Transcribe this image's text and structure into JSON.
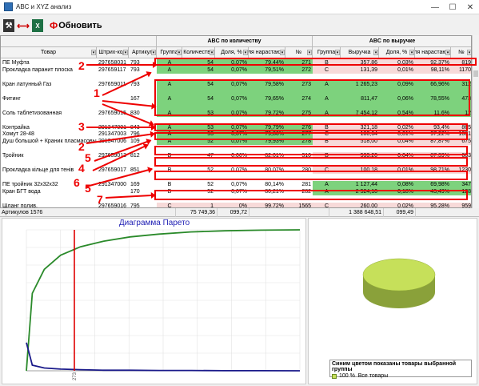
{
  "window": {
    "title": "ABC и XYZ анализ",
    "minimize": "—",
    "maximize": "☐",
    "close": "✕"
  },
  "toolbar": {
    "tool_glyph": "⚒",
    "arrow_glyph": "⟷",
    "excel_glyph": "X",
    "refresh_glyph": "Ф",
    "refresh_label": "Обновить"
  },
  "grid": {
    "group_headers": {
      "qty": "ABC по количеству",
      "rev": "ABC по выручке"
    },
    "columns": [
      "Товар",
      "Штрих-код",
      "Артикул",
      "Группа",
      "Количество",
      "Доля, %",
      "Доля нарастающим",
      "№",
      "Группа",
      "Выручка",
      "Доля, %",
      "Доля нарастающим",
      "№"
    ],
    "rows": [
      {
        "name": "ПЕ Муфта",
        "bar": "297658031",
        "art": "793",
        "qg": "A",
        "qty": "54",
        "qsh": "0,07%",
        "qcum": "79,44%",
        "qn": "271",
        "rg": "B",
        "rev": "357,86",
        "rsh": "0,03%",
        "rcum": "92,37%",
        "rn": "819",
        "qc": "g",
        "rc": "p"
      },
      {
        "name": "Прокладка паранит плоска",
        "bar": "297659117",
        "art": "793",
        "qg": "A",
        "qty": "54",
        "qsh": "0,07%",
        "qcum": "79,51%",
        "qn": "272",
        "rg": "C",
        "rev": "131,39",
        "rsh": "0,01%",
        "rcum": "98,11%",
        "rn": "1170",
        "qc": "g",
        "rc": "p"
      },
      {
        "name": "",
        "bar": "",
        "art": "",
        "qg": "",
        "qty": "",
        "qsh": "",
        "qcum": "",
        "qn": "",
        "rg": "",
        "rev": "",
        "rsh": "",
        "rcum": "",
        "rn": "",
        "qc": "",
        "rc": ""
      },
      {
        "name": "Кран латунный Газ",
        "bar": "297659011",
        "art": "793",
        "qg": "A",
        "qty": "54",
        "qsh": "0,07%",
        "qcum": "79,58%",
        "qn": "273",
        "rg": "A",
        "rev": "1 265,23",
        "rsh": "0,09%",
        "rcum": "66,96%",
        "rn": "312",
        "qc": "g",
        "rc": "g"
      },
      {
        "name": "",
        "bar": "",
        "art": "",
        "qg": "",
        "qty": "",
        "qsh": "",
        "qcum": "",
        "qn": "",
        "rg": "",
        "rev": "",
        "rsh": "",
        "rcum": "",
        "rn": "",
        "qc": "g",
        "rc": "g"
      },
      {
        "name": "Фитинг",
        "bar": "",
        "art": "167",
        "qg": "A",
        "qty": "54",
        "qsh": "0,07%",
        "qcum": "79,65%",
        "qn": "274",
        "rg": "A",
        "rev": "811,47",
        "rsh": "0,06%",
        "rcum": "78,55%",
        "rn": "473",
        "qc": "g",
        "rc": "g"
      },
      {
        "name": "",
        "bar": "",
        "art": "",
        "qg": "",
        "qty": "",
        "qsh": "",
        "qcum": "",
        "qn": "",
        "rg": "",
        "rev": "",
        "rsh": "",
        "rcum": "",
        "rn": "",
        "qc": "g",
        "rc": "g"
      },
      {
        "name": "Соль таблетизованная",
        "bar": "297659015",
        "art": "830",
        "qg": "A",
        "qty": "53",
        "qsh": "0,07%",
        "qcum": "79,72%",
        "qn": "275",
        "rg": "A",
        "rev": "7 454,12",
        "rsh": "0,54%",
        "rcum": "11,6%",
        "rn": "12",
        "qc": "g",
        "rc": "g"
      },
      {
        "name": "",
        "bar": "",
        "art": "",
        "qg": "",
        "qty": "",
        "qsh": "",
        "qcum": "",
        "qn": "",
        "rg": "",
        "rev": "",
        "rsh": "",
        "rcum": "",
        "rn": "",
        "qc": "",
        "rc": ""
      },
      {
        "name": "Контрайка",
        "bar": "291347001",
        "art": "843",
        "qg": "A",
        "qty": "53",
        "qsh": "0,07%",
        "qcum": "79,79%",
        "qn": "276",
        "rg": "B",
        "rev": "321,18",
        "rsh": "0,02%",
        "rcum": "93,4%",
        "rn": "865",
        "qc": "g",
        "rc": "p"
      },
      {
        "name": "Хомут 28-48",
        "bar": "291347003",
        "art": "796",
        "qg": "A",
        "qty": "53",
        "qsh": "0,07%",
        "qcum": "79,86%",
        "qn": "277",
        "rg": "C",
        "rev": "180,64",
        "rsh": "0,01%",
        "rcum": "97,22%",
        "rn": "1081",
        "qc": "g",
        "rc": "p"
      },
      {
        "name": "Душ большой + Краник пласмасовый",
        "bar": "291347006",
        "art": "109",
        "qg": "A",
        "qty": "52",
        "qsh": "0,07%",
        "qcum": "79,93%",
        "qn": "278",
        "rg": "B",
        "rev": "518,00",
        "rsh": "0,04%",
        "rcum": "87,87%",
        "rn": "675",
        "qc": "g",
        "rc": "p"
      },
      {
        "name": "",
        "bar": "",
        "art": "",
        "qg": "",
        "qty": "",
        "qsh": "",
        "qcum": "",
        "qn": "",
        "rg": "",
        "rev": "",
        "rsh": "",
        "rcum": "",
        "rn": "",
        "qc": "",
        "rc": ""
      },
      {
        "name": "Тройник",
        "bar": "297659013",
        "art": "812",
        "qg": "B",
        "qty": "47",
        "qsh": "0,06%",
        "qcum": "82,01%",
        "qn": "310",
        "rg": "B",
        "rev": "533,20",
        "rsh": "0,04%",
        "rcum": "87,39%",
        "rn": "663",
        "qc": "",
        "rc": "p"
      },
      {
        "name": "",
        "bar": "",
        "art": "",
        "qg": "",
        "qty": "",
        "qsh": "",
        "qcum": "",
        "qn": "",
        "rg": "",
        "rev": "",
        "rsh": "",
        "rcum": "",
        "rn": "",
        "qc": "",
        "rc": ""
      },
      {
        "name": "Прокладка кільце для тенів",
        "bar": "297659017",
        "art": "851",
        "qg": "B",
        "qty": "52",
        "qsh": "0,07%",
        "qcum": "80,07%",
        "qn": "280",
        "rg": "C",
        "rev": "100,18",
        "rsh": "0,01%",
        "rcum": "98,71%",
        "rn": "1230",
        "qc": "",
        "rc": "p"
      },
      {
        "name": "",
        "bar": "",
        "art": "",
        "qg": "",
        "qty": "",
        "qsh": "",
        "qcum": "",
        "qn": "",
        "rg": "",
        "rev": "",
        "rsh": "",
        "rcum": "",
        "rn": "",
        "qc": "",
        "rc": ""
      },
      {
        "name": "ПЕ тройник 32х32х32",
        "bar": "291347000",
        "art": "169",
        "qg": "B",
        "qty": "52",
        "qsh": "0,07%",
        "qcum": "80,14%",
        "qn": "281",
        "rg": "A",
        "rev": "1 127,44",
        "rsh": "0,08%",
        "rcum": "69,98%",
        "rn": "347",
        "qc": "",
        "rc": "g"
      },
      {
        "name": "Кран БГТ вода",
        "bar": "",
        "art": "170",
        "qg": "B",
        "qty": "52",
        "qsh": "0,07%",
        "qcum": "80,21%",
        "qn": "282",
        "rg": "A",
        "rev": "2 524,10",
        "rsh": "0,18%",
        "rcum": "43,49%",
        "rn": "128",
        "qc": "",
        "rc": "g"
      },
      {
        "name": "",
        "bar": "",
        "art": "",
        "qg": "",
        "qty": "",
        "qsh": "",
        "qcum": "",
        "qn": "",
        "rg": "",
        "rev": "",
        "rsh": "",
        "rcum": "",
        "rn": "",
        "qc": "",
        "rc": ""
      },
      {
        "name": "Шланг полив.",
        "bar": "297659016",
        "art": "795",
        "qg": "C",
        "qty": "1",
        "qsh": "0%",
        "qcum": "99,72%",
        "qn": "1565",
        "rg": "C",
        "rev": "260,00",
        "rsh": "0,02%",
        "rcum": "95,28%",
        "rn": "959",
        "qc": "p",
        "rc": "p"
      }
    ]
  },
  "annotations": [
    "2",
    "1",
    "3",
    "2",
    "5",
    "4",
    "6",
    "5",
    "7"
  ],
  "status": {
    "count_label": "Артикулов 1576",
    "qty_total": "75 749,36",
    "qty_pct": "099,72",
    "rev_total": "1 388 648,51",
    "rev_pct": "099,49"
  },
  "chart_data": [
    {
      "type": "line",
      "title": "Диаграмма Парето",
      "x_tick": "273",
      "series": [
        {
          "values": [
            0,
            55,
            72,
            82,
            88,
            92,
            95,
            97,
            98.5,
            99.3,
            99.8,
            100
          ]
        },
        {
          "values": [
            5,
            1,
            0.5,
            0.3,
            0.2,
            0.1,
            0.1,
            0.05,
            0.05,
            0.02,
            0.01,
            0
          ]
        }
      ],
      "colors": {
        "cumulative": "#2a8a2a",
        "share": "#1a1a8a",
        "cursor": "#e00000"
      }
    },
    {
      "type": "pie",
      "values": [
        100
      ],
      "legend_title": "Синим цветом показаны товары выбранной группы",
      "legend_items": [
        {
          "pct": "100 %",
          "label": "Все товары"
        }
      ],
      "colors": {
        "slice": "#c6e05a"
      }
    }
  ]
}
